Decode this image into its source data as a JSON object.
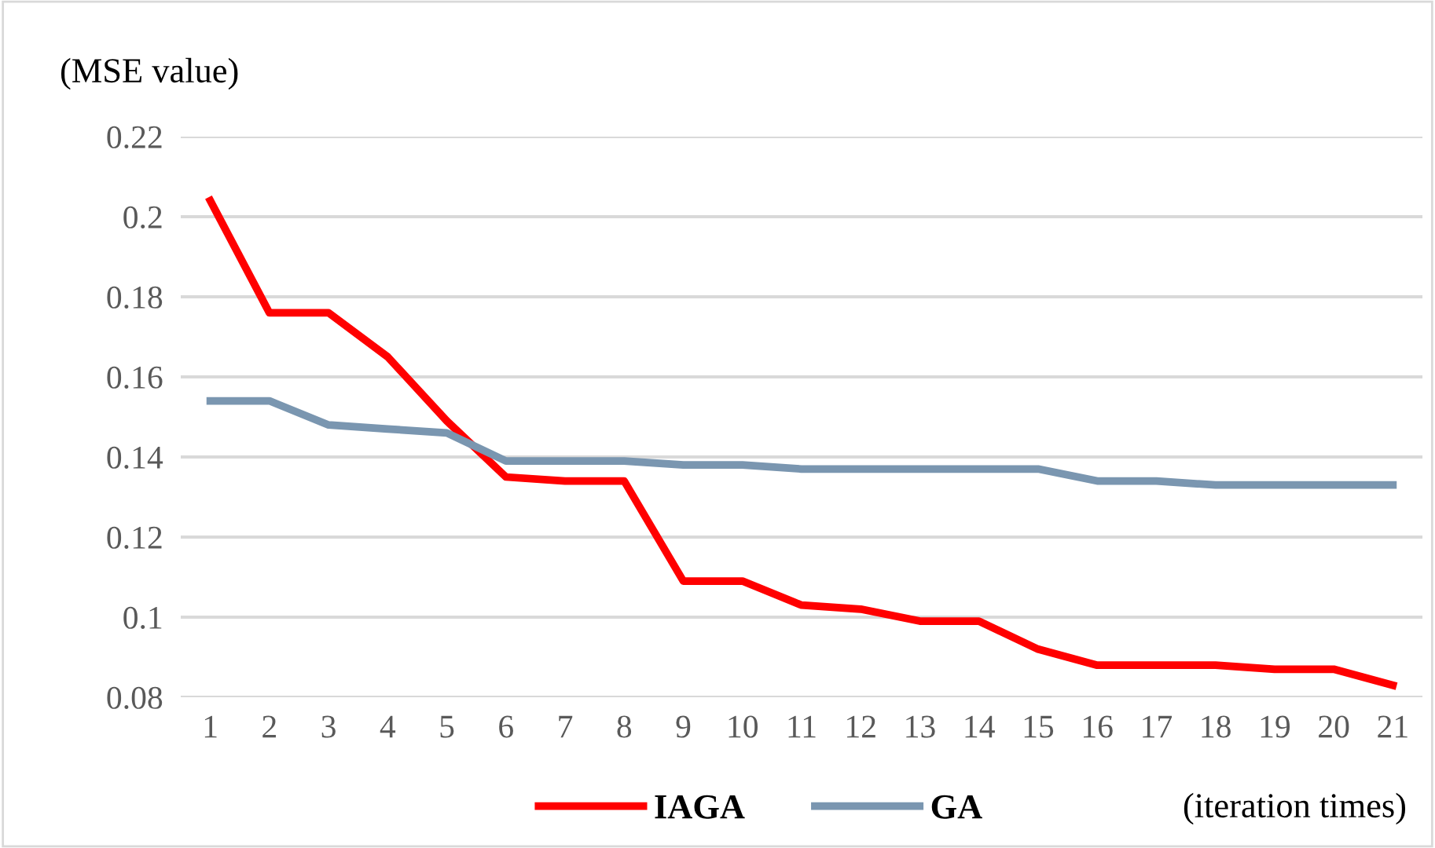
{
  "chart_data": {
    "type": "line",
    "ylabel": "(MSE value)",
    "xlabel": "(iteration times)",
    "categories": [
      "1",
      "2",
      "3",
      "4",
      "5",
      "6",
      "7",
      "8",
      "9",
      "10",
      "11",
      "12",
      "13",
      "14",
      "15",
      "16",
      "17",
      "18",
      "19",
      "20",
      "21"
    ],
    "series": [
      {
        "name": "IAGA",
        "color": "#ff0000",
        "values": [
          0.204,
          0.176,
          0.176,
          0.165,
          0.149,
          0.135,
          0.134,
          0.134,
          0.109,
          0.109,
          0.103,
          0.102,
          0.099,
          0.099,
          0.092,
          0.088,
          0.088,
          0.088,
          0.087,
          0.087,
          0.083
        ]
      },
      {
        "name": "GA",
        "color": "#7a96b0",
        "values": [
          0.154,
          0.154,
          0.148,
          0.147,
          0.146,
          0.139,
          0.139,
          0.139,
          0.138,
          0.138,
          0.137,
          0.137,
          0.137,
          0.137,
          0.137,
          0.134,
          0.134,
          0.133,
          0.133,
          0.133,
          0.133
        ]
      }
    ],
    "ylim": [
      0.08,
      0.22
    ],
    "yticks": [
      0.08,
      0.1,
      0.12,
      0.14,
      0.16,
      0.18,
      0.2,
      0.22
    ],
    "grid": "y",
    "legend": "bottom",
    "marker": "none",
    "line_style": "solid"
  }
}
